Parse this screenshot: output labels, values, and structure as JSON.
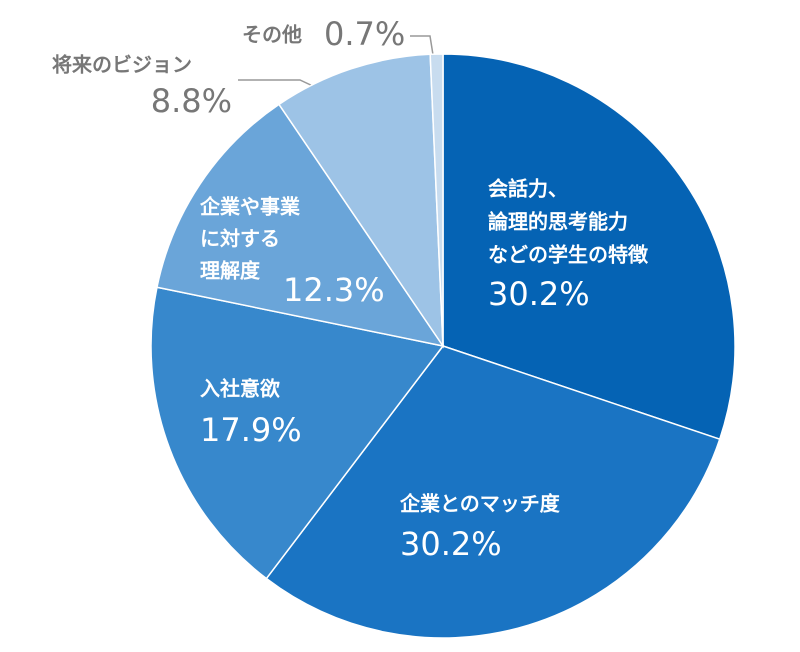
{
  "chart_data": {
    "type": "pie",
    "categories": [
      [
        "会話力、",
        "論理的思考能力",
        "などの学生の特徴"
      ],
      [
        "企業とのマッチ度"
      ],
      [
        "入社意欲"
      ],
      [
        "企業や事業",
        "に対する",
        "理解度"
      ],
      [
        "将来のビジョン"
      ],
      [
        "その他"
      ]
    ],
    "values": [
      30.2,
      30.2,
      17.9,
      12.3,
      8.8,
      0.7
    ],
    "value_labels": [
      "30.2%",
      "30.2%",
      "17.9%",
      "12.3%",
      "8.8%",
      "0.7%"
    ],
    "colors": [
      "#0563b4",
      "#1a74c3",
      "#3788cc",
      "#6aa5d9",
      "#9dc3e6",
      "#c8dcef"
    ]
  }
}
